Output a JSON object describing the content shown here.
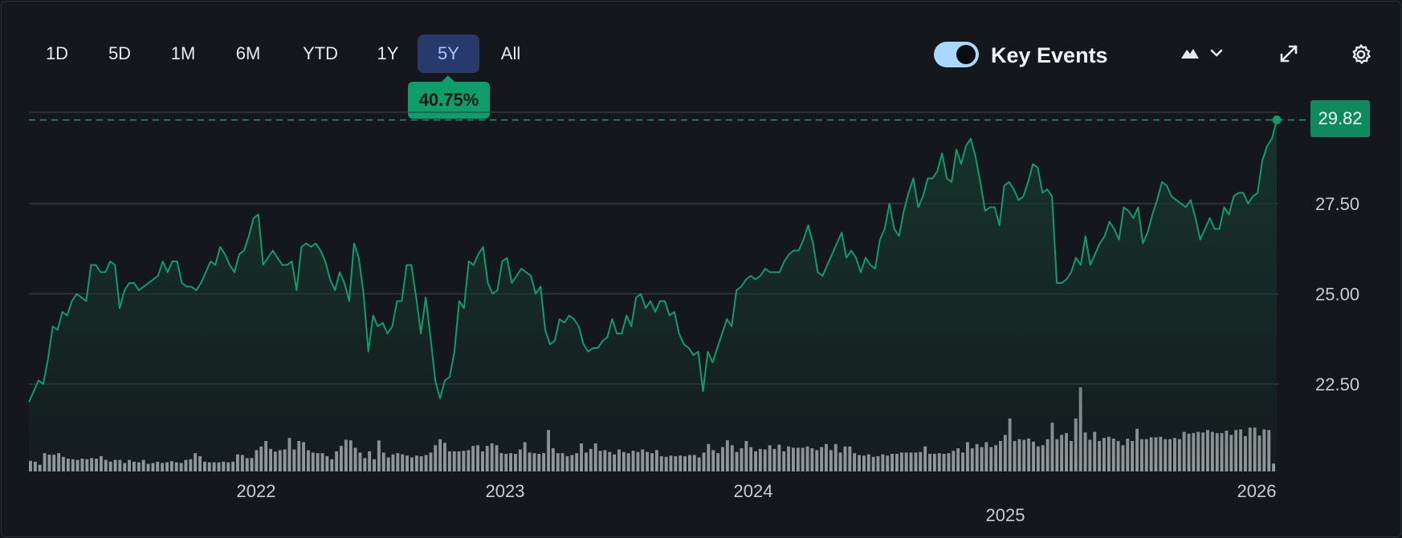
{
  "toolbar": {
    "timeframes": [
      "1D",
      "5D",
      "1M",
      "6M",
      "YTD",
      "1Y",
      "5Y",
      "All"
    ],
    "active_timeframe": "5Y",
    "key_events_label": "Key Events",
    "key_events_enabled": true
  },
  "change_badge": "40.75%",
  "last_price_label": "29.82",
  "icons": {
    "chart_type": "mountain-chart-icon",
    "chart_type_menu": "chevron-down-icon",
    "expand": "expand-icon",
    "settings": "gear-icon"
  },
  "colors": {
    "line": "#0f9d6b",
    "fill": "#17372d",
    "volume_bars": "#a7aaae",
    "active_tab": "#273a6b",
    "badge": "#0f9d6b",
    "price_tag": "#0f8a5f"
  },
  "chart_data": {
    "type": "line",
    "title": "",
    "xlabel": "",
    "ylabel": "",
    "ylim": [
      20.5,
      30.0
    ],
    "yticks": [
      "22.50",
      "25.00",
      "27.50"
    ],
    "xticks": [
      "2022",
      "2023",
      "2024",
      "2025",
      "2026"
    ],
    "x_range": [
      "2021-04",
      "2026-01"
    ],
    "last_value": 29.82,
    "grid": true,
    "series": [
      {
        "values": [
          22.0,
          22.3,
          22.6,
          22.5,
          23.2,
          24.1,
          24.0,
          24.5,
          24.4,
          24.8,
          25.0,
          24.9,
          24.8,
          25.8,
          25.8,
          25.6,
          25.6,
          25.9,
          25.8,
          24.6,
          25.1,
          25.3,
          25.3,
          25.1,
          25.2,
          25.3,
          25.4,
          25.5,
          25.9,
          25.6,
          25.9,
          25.9,
          25.3,
          25.2,
          25.2,
          25.1,
          25.3,
          25.6,
          25.9,
          25.8,
          26.3,
          26.1,
          25.8,
          25.6,
          26.1,
          26.2,
          26.6,
          27.1,
          27.2,
          25.8,
          26.0,
          26.2,
          26.0,
          25.8,
          25.8,
          25.9,
          25.1,
          26.3,
          26.4,
          26.3,
          26.4,
          26.2,
          25.9,
          25.4,
          25.1,
          25.6,
          25.3,
          24.8,
          26.4,
          26.0,
          25.0,
          23.4,
          24.4,
          24.1,
          24.2,
          23.9,
          24.1,
          24.8,
          24.8,
          25.8,
          25.8,
          24.9,
          23.9,
          24.9,
          23.8,
          22.6,
          22.1,
          22.6,
          22.7,
          23.4,
          24.8,
          24.6,
          25.9,
          25.8,
          26.1,
          26.3,
          25.3,
          25.0,
          25.1,
          25.9,
          26.0,
          25.3,
          25.5,
          25.7,
          25.6,
          25.5,
          25.0,
          25.2,
          24.0,
          23.6,
          23.7,
          24.3,
          24.2,
          24.4,
          24.3,
          24.1,
          23.6,
          23.4,
          23.5,
          23.5,
          23.7,
          23.8,
          24.3,
          23.9,
          23.9,
          24.4,
          24.1,
          24.9,
          25.0,
          24.6,
          24.8,
          24.5,
          24.8,
          24.8,
          24.4,
          24.5,
          23.9,
          23.6,
          23.5,
          23.3,
          23.4,
          22.3,
          23.4,
          23.1,
          23.5,
          23.9,
          24.3,
          24.1,
          25.1,
          25.2,
          25.4,
          25.5,
          25.4,
          25.5,
          25.7,
          25.6,
          25.6,
          25.6,
          25.9,
          26.1,
          26.2,
          26.2,
          26.5,
          26.9,
          26.4,
          25.6,
          25.5,
          25.8,
          26.1,
          26.4,
          26.7,
          26.0,
          26.2,
          26.0,
          25.6,
          26.0,
          25.8,
          25.7,
          26.5,
          26.8,
          27.5,
          26.8,
          26.6,
          27.3,
          27.8,
          28.2,
          27.4,
          27.7,
          28.2,
          28.2,
          28.4,
          28.9,
          28.2,
          28.1,
          29.0,
          28.6,
          29.1,
          29.3,
          28.8,
          28.1,
          27.3,
          27.4,
          27.4,
          26.9,
          28.0,
          28.1,
          27.9,
          27.6,
          27.7,
          28.1,
          28.6,
          28.5,
          27.8,
          27.9,
          27.7,
          25.3,
          25.3,
          25.4,
          25.6,
          26.0,
          25.8,
          26.6,
          25.8,
          26.1,
          26.4,
          26.6,
          27.0,
          26.8,
          26.5,
          27.4,
          27.3,
          27.1,
          27.4,
          26.4,
          26.7,
          27.2,
          27.6,
          28.1,
          28.0,
          27.7,
          27.6,
          27.5,
          27.4,
          27.6,
          27.1,
          26.5,
          26.8,
          27.1,
          26.8,
          26.8,
          27.4,
          27.2,
          27.7,
          27.8,
          27.8,
          27.5,
          27.7,
          27.8,
          28.7,
          29.1,
          29.3,
          29.82
        ]
      }
    ],
    "volume": {
      "ylim": [
        0,
        3.0
      ],
      "values": [
        0.35,
        0.32,
        0.22,
        0.6,
        0.55,
        0.55,
        0.6,
        0.48,
        0.42,
        0.4,
        0.38,
        0.42,
        0.4,
        0.44,
        0.42,
        0.5,
        0.38,
        0.32,
        0.38,
        0.38,
        0.28,
        0.38,
        0.32,
        0.3,
        0.38,
        0.25,
        0.28,
        0.32,
        0.28,
        0.3,
        0.34,
        0.3,
        0.28,
        0.38,
        0.4,
        0.6,
        0.5,
        0.32,
        0.3,
        0.3,
        0.3,
        0.32,
        0.3,
        0.32,
        0.56,
        0.54,
        0.44,
        0.44,
        0.7,
        0.82,
        1.0,
        0.74,
        0.65,
        0.7,
        0.72,
        1.1,
        0.72,
        1.0,
        0.96,
        0.7,
        0.62,
        0.6,
        0.6,
        0.5,
        0.4,
        0.66,
        0.84,
        1.04,
        1.02,
        0.78,
        0.62,
        0.44,
        0.66,
        0.4,
        1.02,
        0.62,
        0.46,
        0.56,
        0.6,
        0.56,
        0.52,
        0.46,
        0.52,
        0.5,
        0.54,
        0.62,
        0.86,
        1.06,
        0.94,
        0.66,
        0.66,
        0.66,
        0.68,
        0.7,
        0.84,
        0.86,
        0.66,
        0.84,
        0.92,
        0.86,
        0.6,
        0.58,
        0.6,
        0.58,
        0.72,
        0.96,
        0.62,
        0.6,
        0.58,
        0.6,
        1.36,
        0.76,
        0.6,
        0.6,
        0.5,
        0.54,
        0.6,
        0.92,
        0.62,
        0.74,
        0.92,
        0.68,
        0.7,
        0.64,
        0.56,
        0.72,
        0.64,
        0.6,
        0.68,
        0.64,
        0.72,
        0.64,
        0.6,
        0.7,
        0.5,
        0.48,
        0.52,
        0.5,
        0.52,
        0.5,
        0.54,
        0.54,
        0.46,
        0.62,
        0.9,
        0.7,
        0.6,
        0.8,
        1.02,
        0.86,
        0.64,
        0.76,
        1.0,
        0.8,
        0.66,
        0.74,
        0.72,
        0.86,
        0.74,
        0.88,
        0.66,
        0.82,
        0.78,
        0.78,
        0.78,
        0.82,
        0.76,
        0.7,
        0.8,
        0.9,
        0.7,
        0.9,
        0.62,
        0.82,
        0.82,
        0.6,
        0.54,
        0.52,
        0.56,
        0.48,
        0.5,
        0.56,
        0.52,
        0.58,
        0.58,
        0.62,
        0.62,
        0.62,
        0.62,
        0.64,
        0.82,
        0.58,
        0.58,
        0.6,
        0.58,
        0.6,
        0.68,
        0.76,
        0.62,
        0.96,
        0.76,
        0.9,
        0.8,
        0.96,
        0.8,
        0.86,
        1.0,
        1.2,
        1.74,
        1.0,
        1.06,
        1.04,
        1.08,
        0.98,
        0.82,
        0.86,
        1.06,
        1.6,
        1.06,
        1.2,
        1.26,
        1.0,
        1.74,
        2.76,
        1.28,
        1.04,
        1.3,
        1.0,
        1.1,
        1.14,
        1.08,
        1.0,
        0.86,
        1.08,
        1.0,
        1.4,
        1.06,
        1.06,
        1.12,
        1.12,
        1.14,
        1.06,
        1.06,
        1.1,
        1.06,
        1.3,
        1.24,
        1.26,
        1.3,
        1.28,
        1.36,
        1.3,
        1.26,
        1.26,
        1.34,
        1.2,
        1.36,
        1.38,
        1.16,
        1.44,
        1.44,
        1.18,
        1.38,
        1.36,
        0.26
      ]
    }
  }
}
